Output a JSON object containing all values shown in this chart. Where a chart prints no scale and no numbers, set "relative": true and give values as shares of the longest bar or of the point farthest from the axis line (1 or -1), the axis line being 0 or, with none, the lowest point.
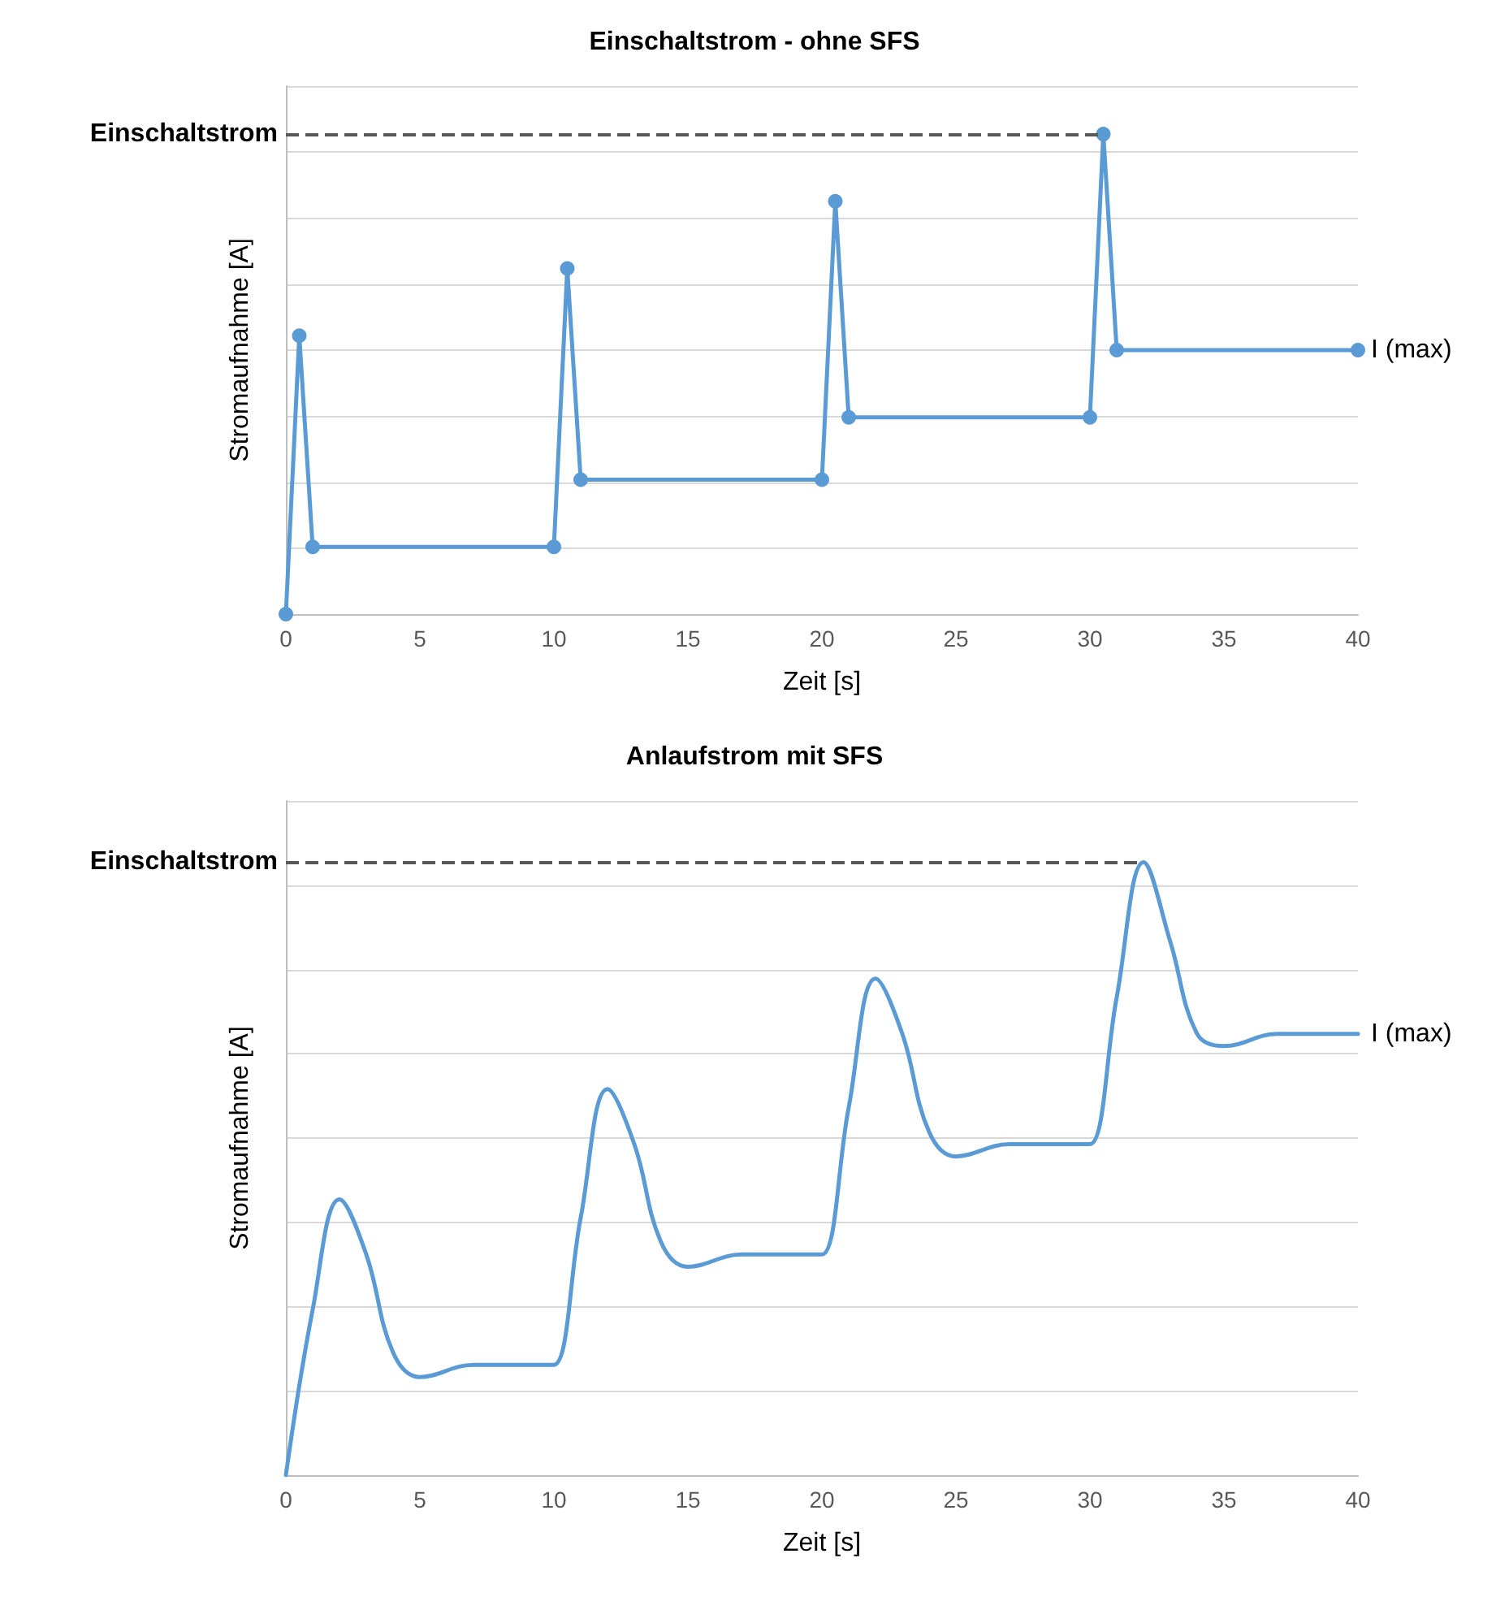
{
  "chart_data": [
    {
      "type": "line",
      "title": "Einschaltstrom - ohne SFS",
      "xlabel": "Zeit [s]",
      "ylabel": "Stromaufnahme [A]",
      "relative": true,
      "xlim": [
        0,
        40
      ],
      "xticks": [
        0,
        5,
        10,
        15,
        20,
        25,
        30,
        35,
        40
      ],
      "grid": "y",
      "marker": "circle",
      "line_style": "solid",
      "series": [
        {
          "color": "#5b9bd5",
          "x": [
            0,
            0.5,
            1,
            10,
            10.5,
            11,
            20,
            20.5,
            21,
            30,
            30.5,
            31,
            40
          ],
          "values": [
            0,
            0.58,
            0.14,
            0.14,
            0.72,
            0.28,
            0.28,
            0.86,
            0.41,
            0.41,
            1,
            0.55,
            0.55
          ]
        }
      ],
      "ref_lines": [
        {
          "axis": "y",
          "value": 1,
          "label": "Einschaltstrom",
          "color": "#595959",
          "line_style": "dashed"
        }
      ],
      "annotations": [
        {
          "text": "I (max)",
          "x": 40,
          "y": 0.55
        }
      ]
    },
    {
      "type": "line",
      "title": "Anlaufstrom mit SFS",
      "xlabel": "Zeit [s]",
      "ylabel": "Stromaufnahme [A]",
      "relative": true,
      "xlim": [
        0,
        40
      ],
      "xticks": [
        0,
        5,
        10,
        15,
        20,
        25,
        30,
        35,
        40
      ],
      "grid": "y",
      "marker": "none",
      "line_style": "solid",
      "series": [
        {
          "color": "#5b9bd5",
          "x": [
            0,
            1,
            2,
            3,
            4,
            5,
            7,
            9.5,
            10,
            11,
            12,
            13,
            14,
            15,
            17,
            19.5,
            20,
            21,
            22,
            23,
            24,
            25,
            27,
            29.5,
            30,
            31,
            32,
            33,
            34,
            35,
            37,
            40
          ],
          "values": [
            0,
            0.27,
            0.45,
            0.36,
            0.2,
            0.16,
            0.18,
            0.18,
            0.18,
            0.42,
            0.63,
            0.54,
            0.38,
            0.34,
            0.36,
            0.36,
            0.36,
            0.6,
            0.81,
            0.72,
            0.56,
            0.52,
            0.54,
            0.54,
            0.54,
            0.78,
            1,
            0.87,
            0.72,
            0.7,
            0.72,
            0.72
          ]
        }
      ],
      "ref_lines": [
        {
          "axis": "y",
          "value": 1,
          "label": "Einschaltstrom",
          "color": "#595959",
          "line_style": "dashed"
        }
      ],
      "annotations": [
        {
          "text": "I (max)",
          "x": 40,
          "y": 0.72
        }
      ]
    }
  ]
}
